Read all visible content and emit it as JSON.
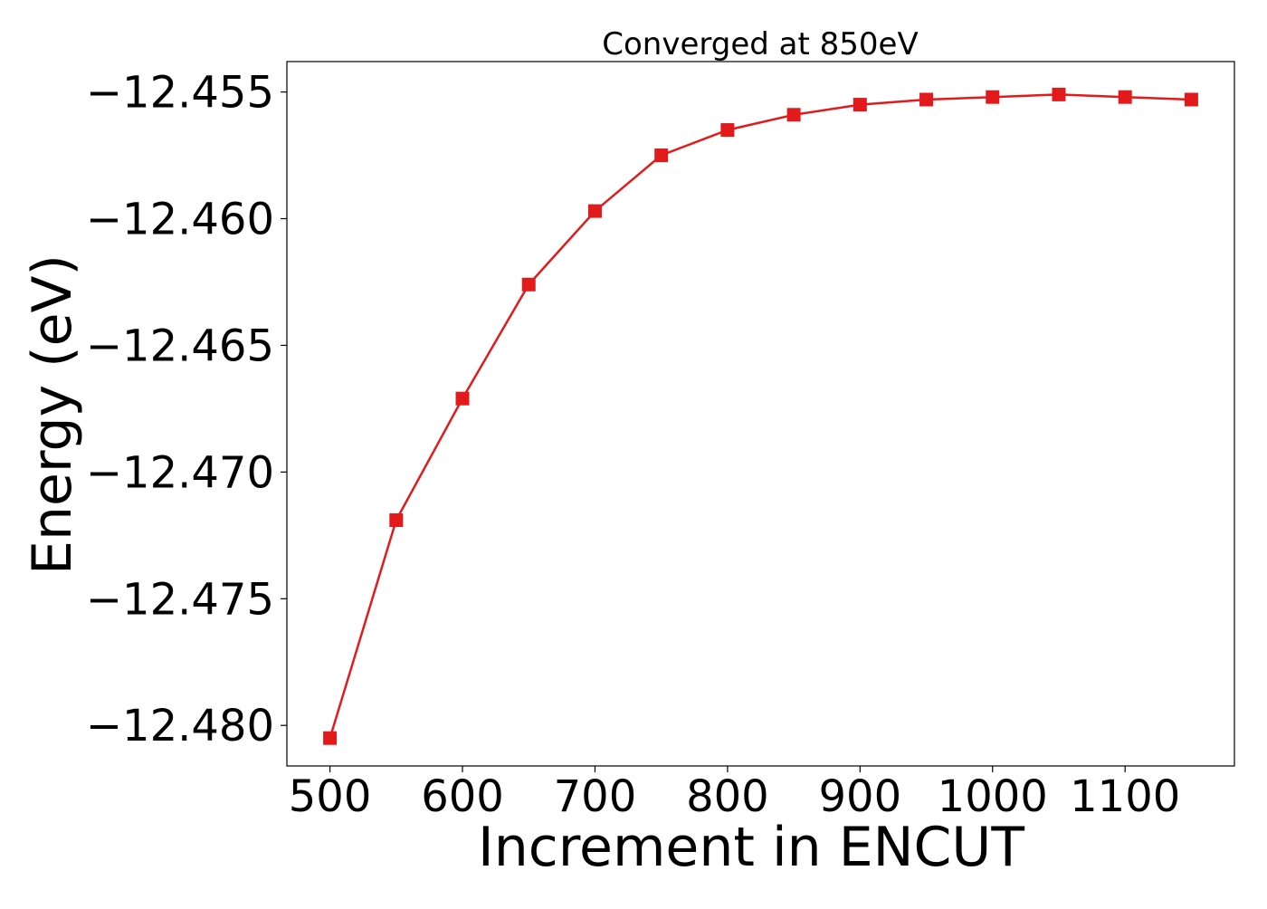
{
  "chart_data": {
    "type": "line",
    "title": "Converged at 850eV",
    "xlabel": "Increment in ENCUT",
    "ylabel": "Energy (eV)",
    "xlim": [
      467.5,
      1182.5
    ],
    "ylim": [
      -12.4816,
      -12.4538
    ],
    "x_ticks": [
      500,
      600,
      700,
      800,
      900,
      1000,
      1100
    ],
    "y_ticks": [
      -12.48,
      -12.475,
      -12.47,
      -12.465,
      -12.46,
      -12.455
    ],
    "y_tick_labels": [
      "−12.480",
      "−12.475",
      "−12.470",
      "−12.465",
      "−12.460",
      "−12.455"
    ],
    "grid": false,
    "series": [
      {
        "color": "#e31a1c",
        "marker": "square",
        "x": [
          500,
          550,
          600,
          650,
          700,
          750,
          800,
          850,
          900,
          950,
          1000,
          1050,
          1100,
          1150
        ],
        "y": [
          -12.4805,
          -12.4719,
          -12.4671,
          -12.4626,
          -12.4597,
          -12.4575,
          -12.4565,
          -12.4559,
          -12.4555,
          -12.4553,
          -12.4552,
          -12.4551,
          -12.4552,
          -12.4553
        ]
      }
    ]
  }
}
